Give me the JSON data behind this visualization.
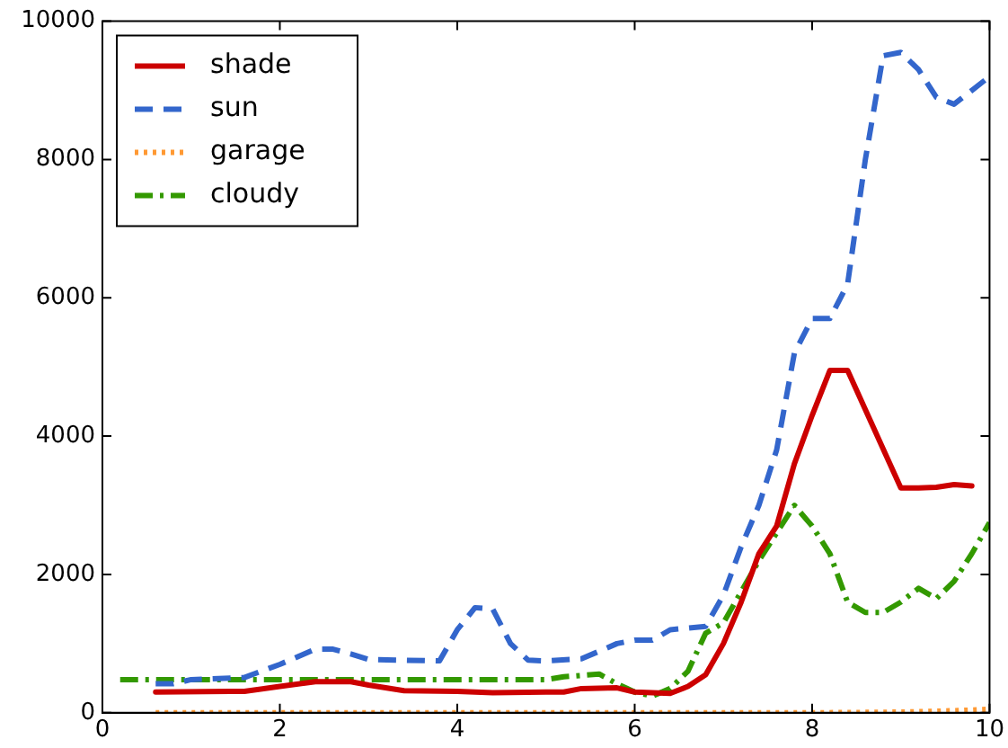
{
  "chart_data": {
    "type": "line",
    "xlim": [
      0,
      10
    ],
    "xticks": [
      0,
      2,
      4,
      6,
      8,
      10
    ],
    "ylim": [
      0,
      10000
    ],
    "yticks": [
      0,
      2000,
      4000,
      6000,
      8000,
      10000
    ],
    "grid": false,
    "legend": "top left",
    "marker": "none",
    "series": [
      {
        "name": "shade",
        "color": "#cc0000",
        "line_style": "solid",
        "x": [
          0.6,
          1.6,
          2.0,
          2.4,
          2.8,
          3.0,
          3.4,
          4.0,
          4.4,
          5.0,
          5.2,
          5.4,
          5.8,
          6.0,
          6.4,
          6.6,
          6.8,
          7.0,
          7.2,
          7.4,
          7.6,
          7.8,
          8.0,
          8.2,
          8.4,
          9.0,
          9.2,
          9.4,
          9.6,
          9.8
        ],
        "values": [
          300,
          310,
          380,
          450,
          450,
          400,
          320,
          310,
          290,
          300,
          300,
          350,
          360,
          300,
          280,
          380,
          550,
          1000,
          1600,
          2300,
          2700,
          3600,
          4300,
          4950,
          4950,
          3250,
          3250,
          3260,
          3300,
          3280
        ]
      },
      {
        "name": "sun",
        "color": "#3366cc",
        "line_style": "dashed",
        "x": [
          0.6,
          0.8,
          1.0,
          1.6,
          2.0,
          2.4,
          2.6,
          2.8,
          3.0,
          3.4,
          3.8,
          4.0,
          4.2,
          4.4,
          4.6,
          4.8,
          5.0,
          5.4,
          5.8,
          6.0,
          6.2,
          6.4,
          6.8,
          7.0,
          7.2,
          7.4,
          7.6,
          7.8,
          8.0,
          8.2,
          8.4,
          8.6,
          8.8,
          9.0,
          9.2,
          9.4,
          9.6,
          9.8,
          10.0
        ],
        "values": [
          420,
          420,
          480,
          510,
          700,
          920,
          920,
          850,
          770,
          760,
          750,
          1200,
          1520,
          1500,
          1000,
          760,
          750,
          780,
          1000,
          1050,
          1050,
          1200,
          1250,
          1700,
          2400,
          3000,
          3800,
          5200,
          5700,
          5700,
          6200,
          8000,
          9500,
          9550,
          9300,
          8900,
          8800,
          9000,
          9200
        ]
      },
      {
        "name": "garage",
        "color": "#ff9933",
        "line_style": "dotted",
        "x": [
          0.6,
          2.0,
          4.0,
          6.0,
          8.0,
          9.0,
          9.6,
          10.0
        ],
        "values": [
          0,
          0,
          0,
          0,
          0,
          10,
          30,
          50
        ]
      },
      {
        "name": "cloudy",
        "color": "#339900",
        "line_style": "dashdot",
        "x": [
          0.2,
          1.0,
          2.0,
          3.0,
          4.0,
          5.0,
          5.2,
          5.6,
          5.8,
          6.0,
          6.2,
          6.4,
          6.6,
          6.8,
          7.0,
          7.2,
          7.4,
          7.6,
          7.8,
          8.0,
          8.2,
          8.4,
          8.6,
          8.8,
          9.0,
          9.2,
          9.4,
          9.6,
          9.8,
          10.0
        ],
        "values": [
          480,
          480,
          480,
          480,
          480,
          480,
          520,
          560,
          420,
          300,
          240,
          350,
          600,
          1150,
          1300,
          1750,
          2200,
          2600,
          3000,
          2700,
          2300,
          1600,
          1450,
          1450,
          1600,
          1800,
          1650,
          1900,
          2300,
          2750
        ]
      }
    ]
  }
}
